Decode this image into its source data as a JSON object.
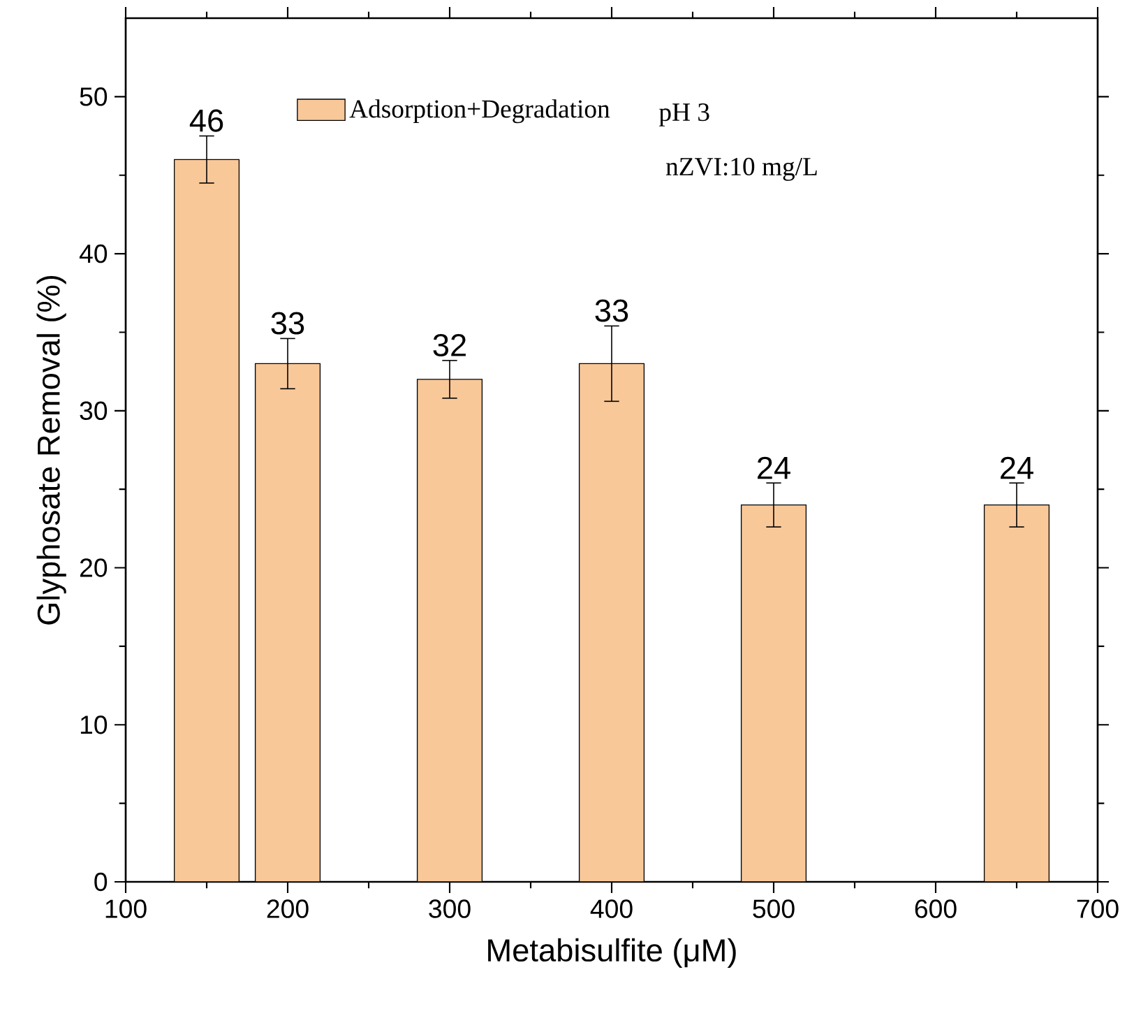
{
  "chart_data": {
    "type": "bar",
    "xlabel": "Metabisulfite (μM)",
    "ylabel": "Glyphosate Removal (%)",
    "x": [
      150,
      200,
      300,
      400,
      500,
      650
    ],
    "series": [
      {
        "name": "Adsorption+Degradation",
        "color": "#f9c899",
        "values": [
          46,
          33,
          32,
          33,
          24,
          24
        ],
        "errors": [
          1.5,
          1.6,
          1.2,
          2.4,
          1.4,
          1.4
        ]
      }
    ],
    "xlim": [
      100,
      700
    ],
    "xticks": [
      100,
      200,
      300,
      400,
      500,
      600,
      700
    ],
    "ylim": [
      0,
      55
    ],
    "yticks": [
      0,
      10,
      20,
      30,
      40,
      50
    ],
    "data_labels": true,
    "legend": "top",
    "grid": false,
    "annotations": [
      "pH 3",
      "nZVI:10 mg/L"
    ]
  }
}
